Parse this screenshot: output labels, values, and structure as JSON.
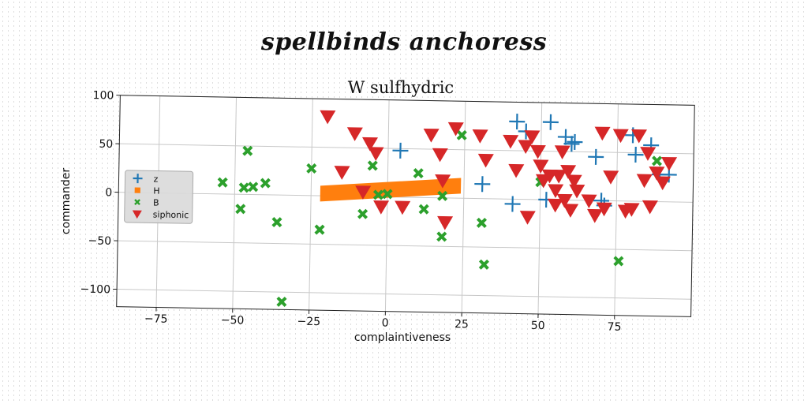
{
  "supertitle": "spellbinds anchoress",
  "chart_data": {
    "type": "scatter",
    "title": "W sulfhydric",
    "xlabel": "complaintiveness",
    "ylabel": "commander",
    "xlim": [
      -88,
      100
    ],
    "ylim": [
      -118,
      100
    ],
    "xticks": [
      -75,
      -50,
      -25,
      0,
      25,
      50,
      75
    ],
    "yticks": [
      -100,
      -50,
      0,
      50,
      100
    ],
    "grid": true,
    "legend_position": "center-left",
    "series": [
      {
        "name": "z",
        "marker": "plus",
        "color": "#1f77b4",
        "points": [
          [
            4,
            48
          ],
          [
            31,
            15
          ],
          [
            41,
            -5
          ],
          [
            42,
            80
          ],
          [
            45,
            70
          ],
          [
            52,
            0
          ],
          [
            53,
            80
          ],
          [
            58,
            65
          ],
          [
            60,
            58
          ],
          [
            61,
            60
          ],
          [
            68,
            45
          ],
          [
            70,
            0
          ],
          [
            71,
            -5
          ],
          [
            80,
            68
          ],
          [
            81,
            48
          ],
          [
            86,
            58
          ],
          [
            89,
            28
          ],
          [
            92,
            28
          ]
        ]
      },
      {
        "name": "H",
        "marker": "band",
        "color": "#ff7f0e",
        "points": [
          [
            -22,
            3
          ],
          [
            24,
            12
          ]
        ]
      },
      {
        "name": "B",
        "marker": "x",
        "color": "#2ca02c",
        "points": [
          [
            -54,
            12
          ],
          [
            -48,
            -15
          ],
          [
            -47,
            7
          ],
          [
            -46,
            45
          ],
          [
            -44,
            8
          ],
          [
            -40,
            12
          ],
          [
            -36,
            -28
          ],
          [
            -34,
            -110
          ],
          [
            -25,
            28
          ],
          [
            -22,
            -35
          ],
          [
            -8,
            -18
          ],
          [
            -5,
            32
          ],
          [
            -3,
            2
          ],
          [
            0,
            3
          ],
          [
            10,
            25
          ],
          [
            12,
            -12
          ],
          [
            18,
            2
          ],
          [
            18,
            -40
          ],
          [
            24,
            65
          ],
          [
            31,
            -25
          ],
          [
            32,
            -68
          ],
          [
            50,
            18
          ],
          [
            76,
            -62
          ],
          [
            88,
            42
          ]
        ]
      },
      {
        "name": "siphonic",
        "marker": "triangle_down",
        "color": "#d62728",
        "points": [
          [
            -20,
            82
          ],
          [
            -15,
            25
          ],
          [
            -11,
            65
          ],
          [
            -8,
            5
          ],
          [
            -6,
            55
          ],
          [
            -4,
            45
          ],
          [
            -2,
            -10
          ],
          [
            5,
            -10
          ],
          [
            14,
            65
          ],
          [
            17,
            45
          ],
          [
            18,
            18
          ],
          [
            19,
            -25
          ],
          [
            22,
            72
          ],
          [
            30,
            65
          ],
          [
            32,
            40
          ],
          [
            40,
            60
          ],
          [
            42,
            30
          ],
          [
            45,
            55
          ],
          [
            46,
            -18
          ],
          [
            47,
            65
          ],
          [
            49,
            50
          ],
          [
            50,
            35
          ],
          [
            51,
            20
          ],
          [
            53,
            25
          ],
          [
            55,
            -5
          ],
          [
            55,
            10
          ],
          [
            56,
            25
          ],
          [
            57,
            50
          ],
          [
            58,
            0
          ],
          [
            59,
            30
          ],
          [
            60,
            -10
          ],
          [
            61,
            20
          ],
          [
            62,
            10
          ],
          [
            66,
            0
          ],
          [
            68,
            -15
          ],
          [
            70,
            70
          ],
          [
            71,
            -8
          ],
          [
            73,
            25
          ],
          [
            76,
            68
          ],
          [
            78,
            -10
          ],
          [
            80,
            -8
          ],
          [
            82,
            68
          ],
          [
            84,
            22
          ],
          [
            85,
            50
          ],
          [
            86,
            -5
          ],
          [
            88,
            30
          ],
          [
            90,
            20
          ],
          [
            92,
            40
          ]
        ]
      }
    ]
  }
}
